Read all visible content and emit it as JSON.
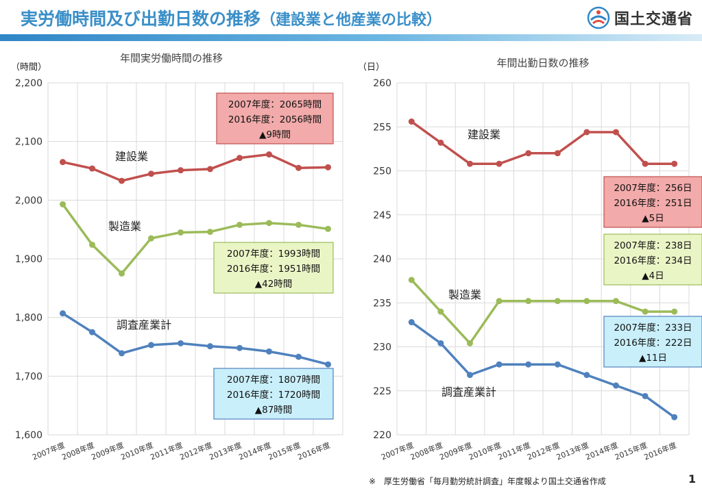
{
  "header": {
    "title": "実労働時間及び出勤日数の推移",
    "subtitle": "（建設業と他産業の比較）",
    "logo_text": "国土交通省",
    "logo_icon": "mlit-logo-icon"
  },
  "footer": {
    "note": "※　厚生労働省「毎月勤労統計調査」年度報より国土交通省作成",
    "page_number": "1"
  },
  "colors": {
    "construction": "#c0504d",
    "manufacturing": "#9bbb59",
    "total": "#4f81bd",
    "box_red_fill": "#f2aaaa",
    "box_green_fill": "#eaf5c6",
    "box_blue_fill": "#c9effa",
    "header_blue": "#3a8fc8"
  },
  "chart_data": [
    {
      "type": "line",
      "title": "年間実労働時間の推移",
      "unit_label": "（時間）",
      "categories": [
        "2007年度",
        "2008年度",
        "2009年度",
        "2010年度",
        "2011年度",
        "2012年度",
        "2013年度",
        "2014年度",
        "2015年度",
        "2016年度"
      ],
      "ylim": [
        1600,
        2200
      ],
      "yticks": [
        1600,
        1700,
        1800,
        1900,
        2000,
        2100,
        2200
      ],
      "ytick_labels": [
        "1,600",
        "1,700",
        "1,800",
        "1,900",
        "2,000",
        "2,100",
        "2,200"
      ],
      "grid": true,
      "series": [
        {
          "name": "建設業",
          "color_key": "construction",
          "values": [
            2065,
            2054,
            2033,
            2045,
            2051,
            2053,
            2072,
            2078,
            2055,
            2056
          ]
        },
        {
          "name": "製造業",
          "color_key": "manufacturing",
          "values": [
            1993,
            1924,
            1875,
            1935,
            1945,
            1946,
            1958,
            1961,
            1958,
            1951
          ]
        },
        {
          "name": "調査産業計",
          "color_key": "total",
          "values": [
            1807,
            1775,
            1739,
            1753,
            1756,
            1751,
            1748,
            1742,
            1733,
            1720
          ]
        }
      ],
      "annotations": [
        {
          "color_key": "construction",
          "lines": [
            "2007年度：2065時間",
            "2016年度：2056時間",
            "▲9時間"
          ]
        },
        {
          "color_key": "manufacturing",
          "lines": [
            "2007年度：1993時間",
            "2016年度：1951時間",
            "▲42時間"
          ]
        },
        {
          "color_key": "total",
          "lines": [
            "2007年度：1807時間",
            "2016年度：1720時間",
            "▲87時間"
          ]
        }
      ]
    },
    {
      "type": "line",
      "title": "年間出勤日数の推移",
      "unit_label": "（日）",
      "categories": [
        "2007年度",
        "2008年度",
        "2009年度",
        "2010年度",
        "2011年度",
        "2012年度",
        "2013年度",
        "2014年度",
        "2015年度",
        "2016年度"
      ],
      "ylim": [
        220,
        260
      ],
      "yticks": [
        220,
        225,
        230,
        235,
        240,
        245,
        250,
        255,
        260
      ],
      "ytick_labels": [
        "220",
        "225",
        "230",
        "235",
        "240",
        "245",
        "250",
        "255",
        "260"
      ],
      "grid": true,
      "series": [
        {
          "name": "建設業",
          "color_key": "construction",
          "values": [
            255.6,
            253.2,
            250.8,
            250.8,
            252.0,
            252.0,
            254.4,
            254.4,
            250.8,
            250.8
          ]
        },
        {
          "name": "製造業",
          "color_key": "manufacturing",
          "values": [
            237.6,
            234.0,
            230.4,
            235.2,
            235.2,
            235.2,
            235.2,
            235.2,
            234.0,
            234.0
          ]
        },
        {
          "name": "調査産業計",
          "color_key": "total",
          "values": [
            232.8,
            230.4,
            226.8,
            228.0,
            228.0,
            228.0,
            226.8,
            225.6,
            224.4,
            222.0
          ]
        }
      ],
      "annotations": [
        {
          "color_key": "construction",
          "lines": [
            "2007年度：256日",
            "2016年度：251日",
            "▲5日"
          ]
        },
        {
          "color_key": "manufacturing",
          "lines": [
            "2007年度：238日",
            "2016年度：234日",
            "▲4日"
          ]
        },
        {
          "color_key": "total",
          "lines": [
            "2007年度：233日",
            "2016年度：222日",
            "▲11日"
          ]
        }
      ]
    }
  ]
}
